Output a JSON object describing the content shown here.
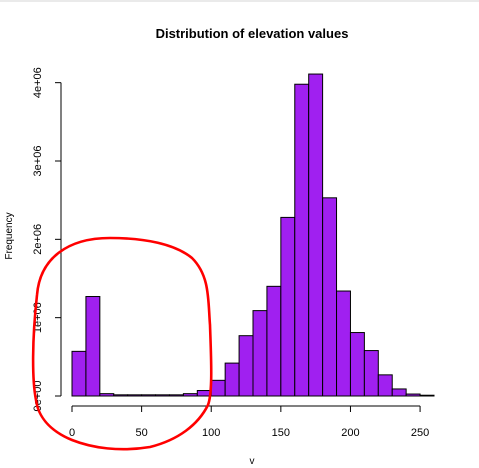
{
  "chart_data": {
    "type": "bar",
    "title": "Distribution of elevation values",
    "xlabel": "v",
    "ylabel": "Frequency",
    "bin_width": 10,
    "bin_starts": [
      0,
      10,
      20,
      30,
      40,
      50,
      60,
      70,
      80,
      90,
      100,
      110,
      120,
      130,
      140,
      150,
      160,
      170,
      180,
      190,
      200,
      210,
      220,
      230,
      240,
      250
    ],
    "values": [
      570000,
      1270000,
      30000,
      15000,
      15000,
      15000,
      15000,
      15000,
      30000,
      70000,
      200000,
      420000,
      770000,
      1090000,
      1400000,
      2280000,
      3980000,
      4110000,
      2530000,
      1340000,
      810000,
      580000,
      270000,
      90000,
      25000,
      10000
    ],
    "xlim": [
      0,
      260
    ],
    "ylim": [
      0,
      4200000
    ],
    "x_ticks": [
      0,
      50,
      100,
      150,
      200,
      250
    ],
    "x_tick_labels": [
      "0",
      "50",
      "100",
      "150",
      "200",
      "250"
    ],
    "y_ticks": [
      0,
      1000000,
      2000000,
      3000000,
      4000000
    ],
    "y_tick_labels": [
      "0e+00",
      "1e+06",
      "2e+06",
      "3e+06",
      "4e+06"
    ],
    "bar_color": "#a020f0",
    "bar_border": "#000000",
    "annotation_color": "#ff0000",
    "grid": false,
    "legend": "none"
  }
}
